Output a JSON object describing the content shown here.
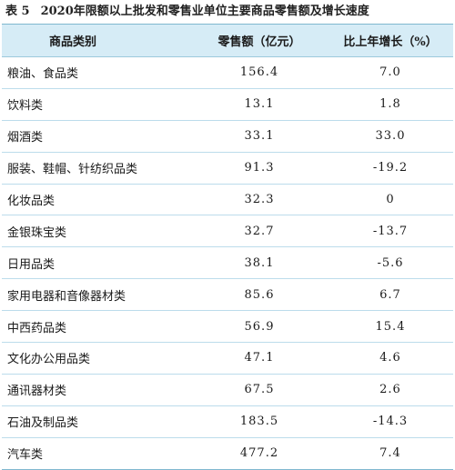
{
  "title": {
    "number": "表 5",
    "text": "2020年限额以上批发和零售业单位主要商品零售额及增长速度"
  },
  "columns": [
    "商品类别",
    "零售额（亿元）",
    "比上年增长（%）"
  ],
  "rows": [
    {
      "category": "粮油、食品类",
      "sales": "156.4",
      "growth": "7.0"
    },
    {
      "category": "饮料类",
      "sales": "13.1",
      "growth": "1.8"
    },
    {
      "category": "烟酒类",
      "sales": "33.1",
      "growth": "33.0"
    },
    {
      "category": "服装、鞋帽、针纺织品类",
      "sales": "91.3",
      "growth": "-19.2"
    },
    {
      "category": "化妆品类",
      "sales": "32.3",
      "growth": "0"
    },
    {
      "category": "金银珠宝类",
      "sales": "32.7",
      "growth": "-13.7"
    },
    {
      "category": "日用品类",
      "sales": "38.1",
      "growth": "-5.6"
    },
    {
      "category": "家用电器和音像器材类",
      "sales": "85.6",
      "growth": "6.7"
    },
    {
      "category": "中西药品类",
      "sales": "56.9",
      "growth": "15.4"
    },
    {
      "category": "文化办公用品类",
      "sales": "47.1",
      "growth": "4.6"
    },
    {
      "category": "通讯器材类",
      "sales": "67.5",
      "growth": "2.6"
    },
    {
      "category": "石油及制品类",
      "sales": "183.5",
      "growth": "-14.3"
    },
    {
      "category": "汽车类",
      "sales": "477.2",
      "growth": "7.4"
    }
  ],
  "colors": {
    "header_bg": "#d6ecf6",
    "rule": "#7fb8cf"
  }
}
